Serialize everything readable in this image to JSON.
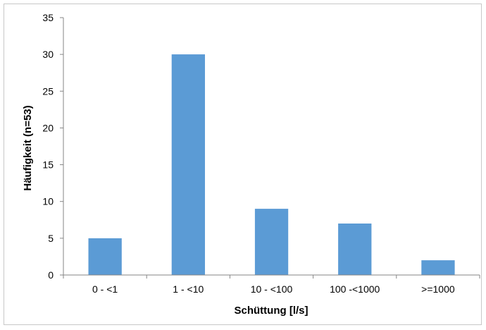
{
  "chart_data": {
    "type": "bar",
    "categories": [
      "0 - <1",
      "1 - <10",
      "10 - <100",
      "100 -<1000",
      ">=1000"
    ],
    "values": [
      5,
      30,
      9,
      7,
      2
    ],
    "xlabel": "Schüttung [l/s]",
    "ylabel": "Häufigkeit (n=53)",
    "ylim": [
      0,
      35
    ],
    "yticks": [
      0,
      5,
      10,
      15,
      20,
      25,
      30,
      35
    ],
    "grid": false,
    "legend": "none",
    "bar_color": "#5b9bd5",
    "axis_color": "#868686"
  }
}
